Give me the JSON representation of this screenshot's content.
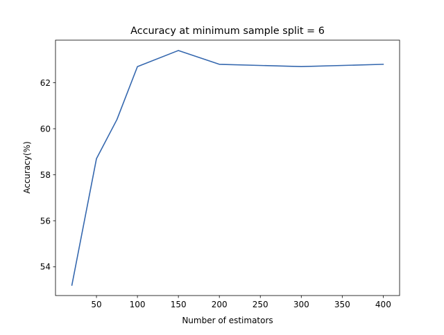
{
  "chart_data": {
    "type": "line",
    "title": "Accuracy at minimum sample split = 6",
    "xlabel": "Number of estimators",
    "ylabel": "Accuracy(%)",
    "xlim": [
      0,
      420
    ],
    "ylim": [
      52.75,
      63.85
    ],
    "xticks": [
      50,
      100,
      150,
      200,
      250,
      300,
      350,
      400
    ],
    "yticks": [
      54,
      56,
      58,
      60,
      62
    ],
    "grid": false,
    "legend": false,
    "line_color": "#3467ae",
    "series": [
      {
        "x": [
          20,
          50,
          75,
          100,
          150,
          200,
          300,
          400
        ],
        "values": [
          53.2,
          58.7,
          60.4,
          62.7,
          63.4,
          62.8,
          62.7,
          62.8
        ]
      }
    ]
  }
}
